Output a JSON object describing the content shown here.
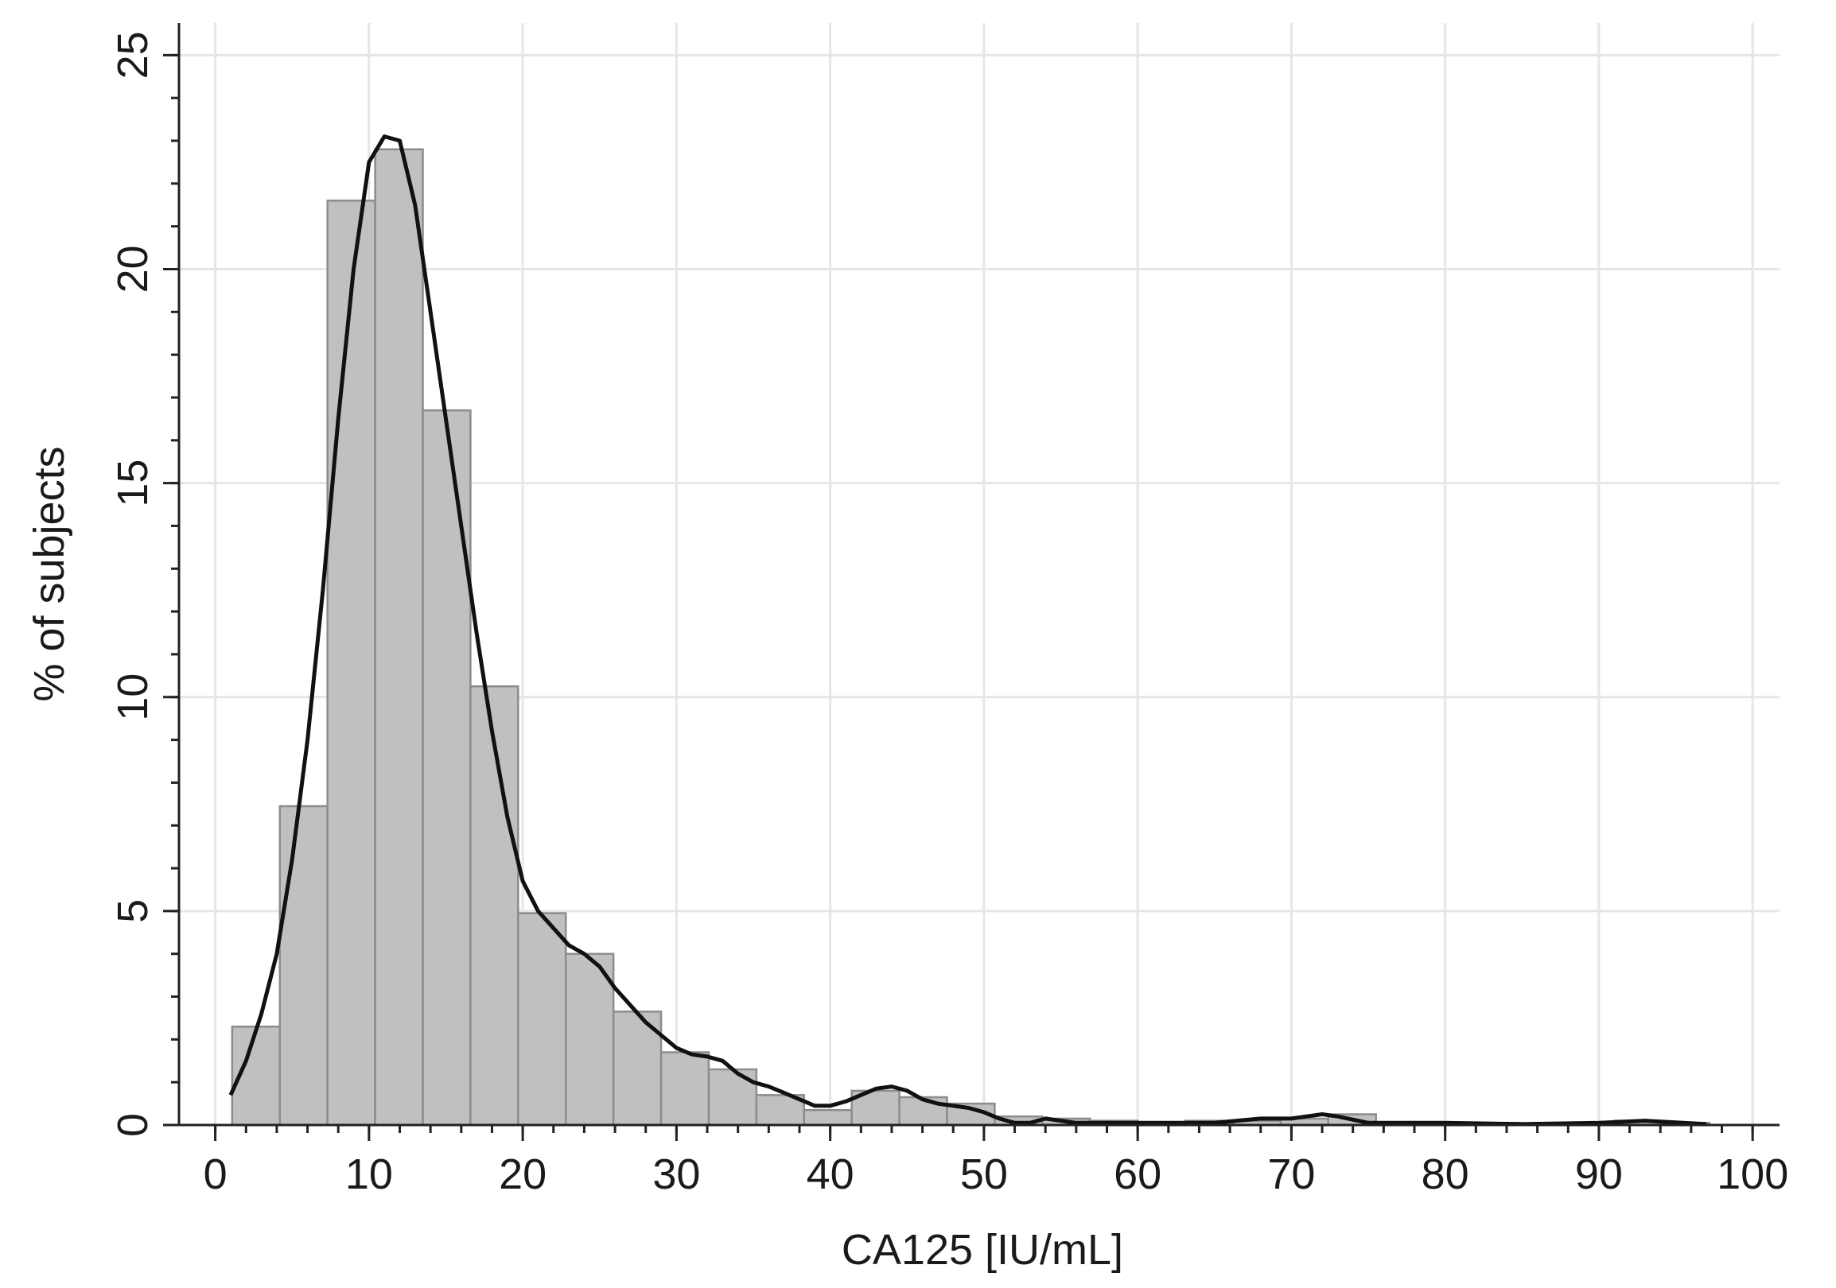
{
  "chart_data": {
    "type": "histogram",
    "x_label": "CA125 [IU/mL]",
    "y_label": "% of subjects",
    "bins": [
      1.1,
      4.2,
      7.3,
      10.4,
      13.5,
      16.6,
      19.7,
      22.8,
      25.9,
      29.0,
      32.1,
      35.2,
      38.3,
      41.4,
      44.5,
      47.6,
      50.7,
      53.8,
      56.9,
      60.0,
      63.1,
      66.2,
      69.3,
      72.4,
      75.5,
      78.6,
      81.7,
      84.8,
      87.9,
      91.0,
      94.1,
      97.2
    ],
    "values": [
      2.3,
      7.45,
      21.6,
      22.8,
      16.7,
      10.25,
      4.95,
      4.0,
      2.65,
      1.7,
      1.3,
      0.7,
      0.35,
      0.8,
      0.65,
      0.5,
      0.2,
      0.15,
      0.1,
      0.05,
      0.1,
      0.1,
      0.15,
      0.25,
      0.05,
      0.05,
      0.05,
      0.03,
      0.05,
      0.1,
      0.05
    ],
    "color": "#c0c0c0",
    "edge_color": "#8c8c8c",
    "curve": {
      "color": "#111111",
      "x": [
        1,
        2,
        3,
        4,
        5,
        6,
        7,
        8,
        9,
        10,
        11,
        12,
        13,
        14,
        15,
        16,
        17,
        18,
        19,
        20,
        21,
        22,
        23,
        24,
        25,
        26,
        27,
        28,
        29,
        30,
        31,
        32,
        33,
        34,
        35,
        36,
        37,
        38,
        39,
        40,
        41,
        42,
        43,
        44,
        45,
        46,
        47,
        48,
        49,
        50,
        51,
        52,
        53,
        54,
        55,
        56,
        58,
        60,
        65,
        68,
        70,
        72,
        73,
        75,
        80,
        85,
        90,
        93,
        97
      ],
      "values": [
        0.7,
        1.5,
        2.6,
        4,
        6.2,
        9,
        12.5,
        16.5,
        20,
        22.5,
        23.1,
        23,
        21.5,
        19,
        16.5,
        14,
        11.5,
        9.2,
        7.2,
        5.7,
        5,
        4.6,
        4.2,
        4,
        3.7,
        3.2,
        2.8,
        2.4,
        2.1,
        1.8,
        1.65,
        1.6,
        1.5,
        1.2,
        1,
        0.9,
        0.75,
        0.6,
        0.45,
        0.45,
        0.55,
        0.7,
        0.85,
        0.9,
        0.8,
        0.6,
        0.5,
        0.45,
        0.4,
        0.3,
        0.15,
        0.05,
        0.05,
        0.15,
        0.1,
        0.05,
        0.05,
        0.05,
        0.05,
        0.15,
        0.15,
        0.25,
        0.2,
        0.05,
        0.05,
        0.02,
        0.05,
        0.1,
        0.02
      ]
    },
    "xlim": [
      -2.36,
      101.75
    ],
    "ylim": [
      0,
      25.75
    ],
    "xticks": [
      0,
      10,
      20,
      30,
      40,
      50,
      60,
      70,
      80,
      90,
      100
    ],
    "yticks": [
      0,
      5,
      10,
      15,
      20,
      25
    ],
    "xminorticks": [
      0,
      2,
      4,
      6,
      8,
      10,
      12,
      14,
      16,
      18,
      20,
      22,
      24,
      26,
      28,
      30,
      32,
      34,
      36,
      38,
      40,
      42,
      44,
      46,
      48,
      50,
      52,
      54,
      56,
      58,
      60,
      62,
      64,
      66,
      68,
      70,
      72,
      74,
      76,
      78,
      80,
      82,
      84,
      86,
      88,
      90,
      92,
      94,
      96,
      98,
      100
    ],
    "yminorticks": [
      0,
      1,
      2,
      3,
      4,
      5,
      6,
      7,
      8,
      9,
      10,
      11,
      12,
      13,
      14,
      15,
      16,
      17,
      18,
      19,
      20,
      21,
      22,
      23,
      24,
      25
    ],
    "grid": true
  }
}
